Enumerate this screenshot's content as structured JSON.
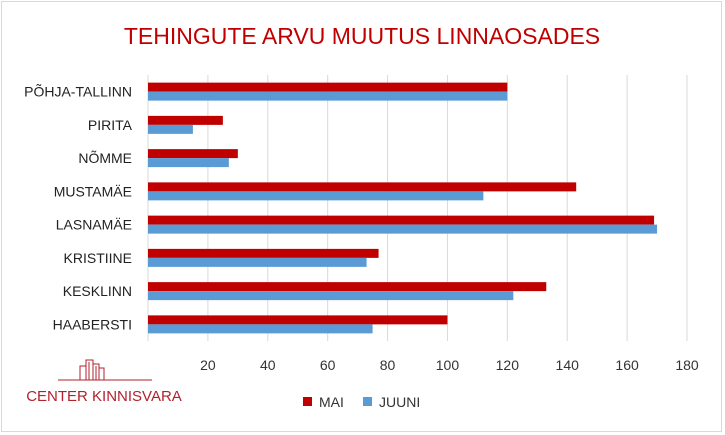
{
  "chart_data": {
    "type": "bar",
    "orientation": "horizontal",
    "title": "TEHINGUTE ARVU MUUTUS LINNAOSADES",
    "categories": [
      "PÕHJA-TALLINN",
      "PIRITA",
      "NÕMME",
      "MUSTAMÄE",
      "LASNAMÄE",
      "KRISTIINE",
      "KESKLINN",
      "HAABERSTI"
    ],
    "series": [
      {
        "name": "MAI",
        "color": "#c00000",
        "values": [
          120,
          25,
          30,
          143,
          169,
          77,
          133,
          100
        ]
      },
      {
        "name": "JUUNI",
        "color": "#5b9bd5",
        "values": [
          120,
          15,
          27,
          112,
          170,
          73,
          122,
          75
        ]
      }
    ],
    "xlim": [
      0,
      180
    ],
    "xticks": [
      20,
      40,
      60,
      80,
      100,
      120,
      140,
      160,
      180
    ],
    "grid": true,
    "legend_position": "bottom"
  },
  "logo": {
    "text": "CENTER KINNISVARA",
    "color": "#b0222e"
  }
}
